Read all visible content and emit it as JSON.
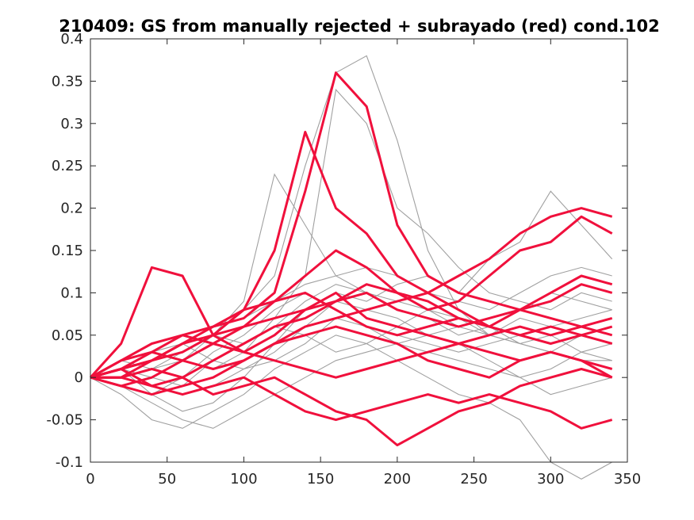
{
  "chart_data": {
    "type": "line",
    "title": "210409: GS from manually rejected + subrayado (red) cond.102",
    "xlabel": "",
    "ylabel": "",
    "xlim": [
      0,
      350
    ],
    "ylim": [
      -0.1,
      0.4
    ],
    "x_ticks": [
      0,
      50,
      100,
      150,
      200,
      250,
      300,
      350
    ],
    "x_tick_labels": [
      "0",
      "50",
      "100",
      "150",
      "200",
      "250",
      "300",
      "350"
    ],
    "y_ticks": [
      -0.1,
      -0.05,
      0,
      0.05,
      0.1,
      0.15,
      0.2,
      0.25,
      0.3,
      0.35,
      0.4
    ],
    "y_tick_labels": [
      "-0.1",
      "-0.05",
      "0",
      "0.05",
      "0.1",
      "0.15",
      "0.2",
      "0.25",
      "0.3",
      "0.35",
      "0.4"
    ],
    "grid": false,
    "legend": "none",
    "colors": {
      "gray_series": "#a0a0a0",
      "red_series": "#f0103c",
      "axes": "#262626"
    },
    "x": [
      0,
      20,
      40,
      60,
      80,
      100,
      120,
      140,
      160,
      180,
      200,
      220,
      240,
      260,
      280,
      300,
      320,
      340
    ],
    "series": [
      {
        "color": "#a0a0a0",
        "values": [
          0,
          0.01,
          0.02,
          0.03,
          0.05,
          0.08,
          0.12,
          0.25,
          0.36,
          0.38,
          0.28,
          0.15,
          0.08,
          0.05,
          0.04,
          0.03,
          0.05,
          0.06
        ]
      },
      {
        "color": "#a0a0a0",
        "values": [
          0,
          0.02,
          0.03,
          0.02,
          0.05,
          0.09,
          0.24,
          0.18,
          0.12,
          0.1,
          0.09,
          0.08,
          0.06,
          0.05,
          0.07,
          0.06,
          0.05,
          0.04
        ]
      },
      {
        "color": "#a0a0a0",
        "values": [
          0,
          -0.02,
          -0.05,
          -0.06,
          -0.04,
          -0.02,
          0.01,
          0.03,
          0.05,
          0.04,
          0.02,
          0.0,
          -0.02,
          -0.03,
          -0.05,
          -0.1,
          -0.12,
          -0.1
        ]
      },
      {
        "color": "#a0a0a0",
        "values": [
          0,
          0.01,
          -0.02,
          -0.04,
          -0.03,
          0.0,
          0.04,
          0.08,
          0.1,
          0.09,
          0.11,
          0.12,
          0.1,
          0.14,
          0.16,
          0.22,
          0.18,
          0.14
        ]
      },
      {
        "color": "#a0a0a0",
        "values": [
          0,
          0.0,
          0.01,
          0.02,
          0.01,
          0.03,
          0.07,
          0.12,
          0.34,
          0.3,
          0.2,
          0.17,
          0.13,
          0.1,
          0.09,
          0.08,
          0.1,
          0.09
        ]
      },
      {
        "color": "#a0a0a0",
        "values": [
          0,
          -0.01,
          -0.03,
          -0.05,
          -0.06,
          -0.04,
          -0.02,
          0.0,
          0.02,
          0.03,
          0.04,
          0.03,
          0.02,
          0.01,
          0.0,
          -0.02,
          -0.01,
          0.0
        ]
      },
      {
        "color": "#a0a0a0",
        "values": [
          0,
          0.02,
          0.04,
          0.05,
          0.06,
          0.07,
          0.09,
          0.11,
          0.12,
          0.13,
          0.12,
          0.1,
          0.09,
          0.08,
          0.1,
          0.12,
          0.13,
          0.12
        ]
      },
      {
        "color": "#a0a0a0",
        "values": [
          0,
          0.01,
          0.0,
          -0.01,
          0.02,
          0.04,
          0.06,
          0.05,
          0.03,
          0.04,
          0.06,
          0.08,
          0.07,
          0.05,
          0.04,
          0.03,
          0.02,
          0.02
        ]
      },
      {
        "color": "#a0a0a0",
        "values": [
          0,
          -0.01,
          -0.02,
          0.0,
          0.03,
          0.05,
          0.08,
          0.1,
          0.08,
          0.06,
          0.05,
          0.04,
          0.03,
          0.04,
          0.05,
          0.06,
          0.07,
          0.08
        ]
      },
      {
        "color": "#a0a0a0",
        "values": [
          0,
          0.01,
          0.03,
          0.04,
          0.02,
          0.01,
          0.03,
          0.06,
          0.09,
          0.08,
          0.07,
          0.05,
          0.04,
          0.02,
          0.0,
          0.01,
          0.03,
          0.04
        ]
      },
      {
        "color": "#a0a0a0",
        "values": [
          0,
          0.0,
          -0.01,
          -0.02,
          -0.01,
          0.01,
          0.02,
          0.04,
          0.07,
          0.06,
          0.04,
          0.05,
          0.06,
          0.07,
          0.08,
          0.1,
          0.09,
          0.08
        ]
      },
      {
        "color": "#a0a0a0",
        "values": [
          0,
          0.02,
          0.01,
          0.03,
          0.05,
          0.04,
          0.06,
          0.09,
          0.11,
          0.1,
          0.08,
          0.07,
          0.05,
          0.06,
          0.04,
          0.05,
          0.03,
          0.02
        ]
      },
      {
        "color": "#f0103c",
        "values": [
          0,
          0.04,
          0.13,
          0.12,
          0.05,
          0.03,
          0.05,
          0.08,
          0.1,
          0.07,
          0.06,
          0.05,
          0.04,
          0.03,
          0.02,
          0.03,
          0.02,
          0.01
        ]
      },
      {
        "color": "#f0103c",
        "values": [
          0,
          0.01,
          0.02,
          0.03,
          0.05,
          0.08,
          0.15,
          0.29,
          0.2,
          0.17,
          0.12,
          0.1,
          0.08,
          0.06,
          0.05,
          0.06,
          0.05,
          0.06
        ]
      },
      {
        "color": "#f0103c",
        "values": [
          0,
          0.0,
          0.02,
          0.04,
          0.06,
          0.07,
          0.1,
          0.22,
          0.36,
          0.32,
          0.18,
          0.12,
          0.1,
          0.09,
          0.08,
          0.07,
          0.06,
          0.05
        ]
      },
      {
        "color": "#f0103c",
        "values": [
          0,
          -0.01,
          0.0,
          0.02,
          0.04,
          0.06,
          0.09,
          0.12,
          0.15,
          0.13,
          0.1,
          0.08,
          0.09,
          0.12,
          0.15,
          0.16,
          0.19,
          0.17
        ]
      },
      {
        "color": "#f0103c",
        "values": [
          0,
          0.02,
          0.03,
          0.02,
          0.01,
          0.02,
          0.04,
          0.06,
          0.07,
          0.08,
          0.09,
          0.1,
          0.12,
          0.14,
          0.17,
          0.19,
          0.2,
          0.19
        ]
      },
      {
        "color": "#f0103c",
        "values": [
          0,
          0.01,
          -0.01,
          -0.02,
          -0.01,
          0.0,
          -0.02,
          -0.04,
          -0.05,
          -0.04,
          -0.03,
          -0.02,
          -0.03,
          -0.02,
          -0.03,
          -0.04,
          -0.06,
          -0.05
        ]
      },
      {
        "color": "#f0103c",
        "values": [
          0,
          0.0,
          0.01,
          0.0,
          -0.02,
          -0.01,
          0.0,
          -0.02,
          -0.04,
          -0.05,
          -0.08,
          -0.06,
          -0.04,
          -0.03,
          -0.01,
          0.0,
          0.01,
          0.0
        ]
      },
      {
        "color": "#f0103c",
        "values": [
          0,
          0.01,
          0.02,
          0.04,
          0.05,
          0.06,
          0.07,
          0.08,
          0.09,
          0.1,
          0.08,
          0.07,
          0.06,
          0.07,
          0.08,
          0.09,
          0.11,
          0.1
        ]
      },
      {
        "color": "#f0103c",
        "values": [
          0,
          0.02,
          0.04,
          0.05,
          0.04,
          0.03,
          0.02,
          0.01,
          0.0,
          0.01,
          0.02,
          0.03,
          0.04,
          0.05,
          0.06,
          0.05,
          0.06,
          0.07
        ]
      },
      {
        "color": "#f0103c",
        "values": [
          0,
          -0.01,
          -0.02,
          -0.01,
          0.0,
          0.02,
          0.04,
          0.05,
          0.06,
          0.05,
          0.04,
          0.02,
          0.01,
          0.0,
          0.02,
          0.03,
          0.02,
          0.0
        ]
      },
      {
        "color": "#f0103c",
        "values": [
          0,
          0.01,
          0.03,
          0.05,
          0.06,
          0.08,
          0.09,
          0.1,
          0.08,
          0.06,
          0.05,
          0.06,
          0.07,
          0.06,
          0.05,
          0.04,
          0.05,
          0.04
        ]
      },
      {
        "color": "#f0103c",
        "values": [
          0,
          0.0,
          -0.01,
          0.0,
          0.02,
          0.04,
          0.06,
          0.07,
          0.09,
          0.11,
          0.1,
          0.09,
          0.07,
          0.06,
          0.08,
          0.1,
          0.12,
          0.11
        ]
      }
    ]
  }
}
